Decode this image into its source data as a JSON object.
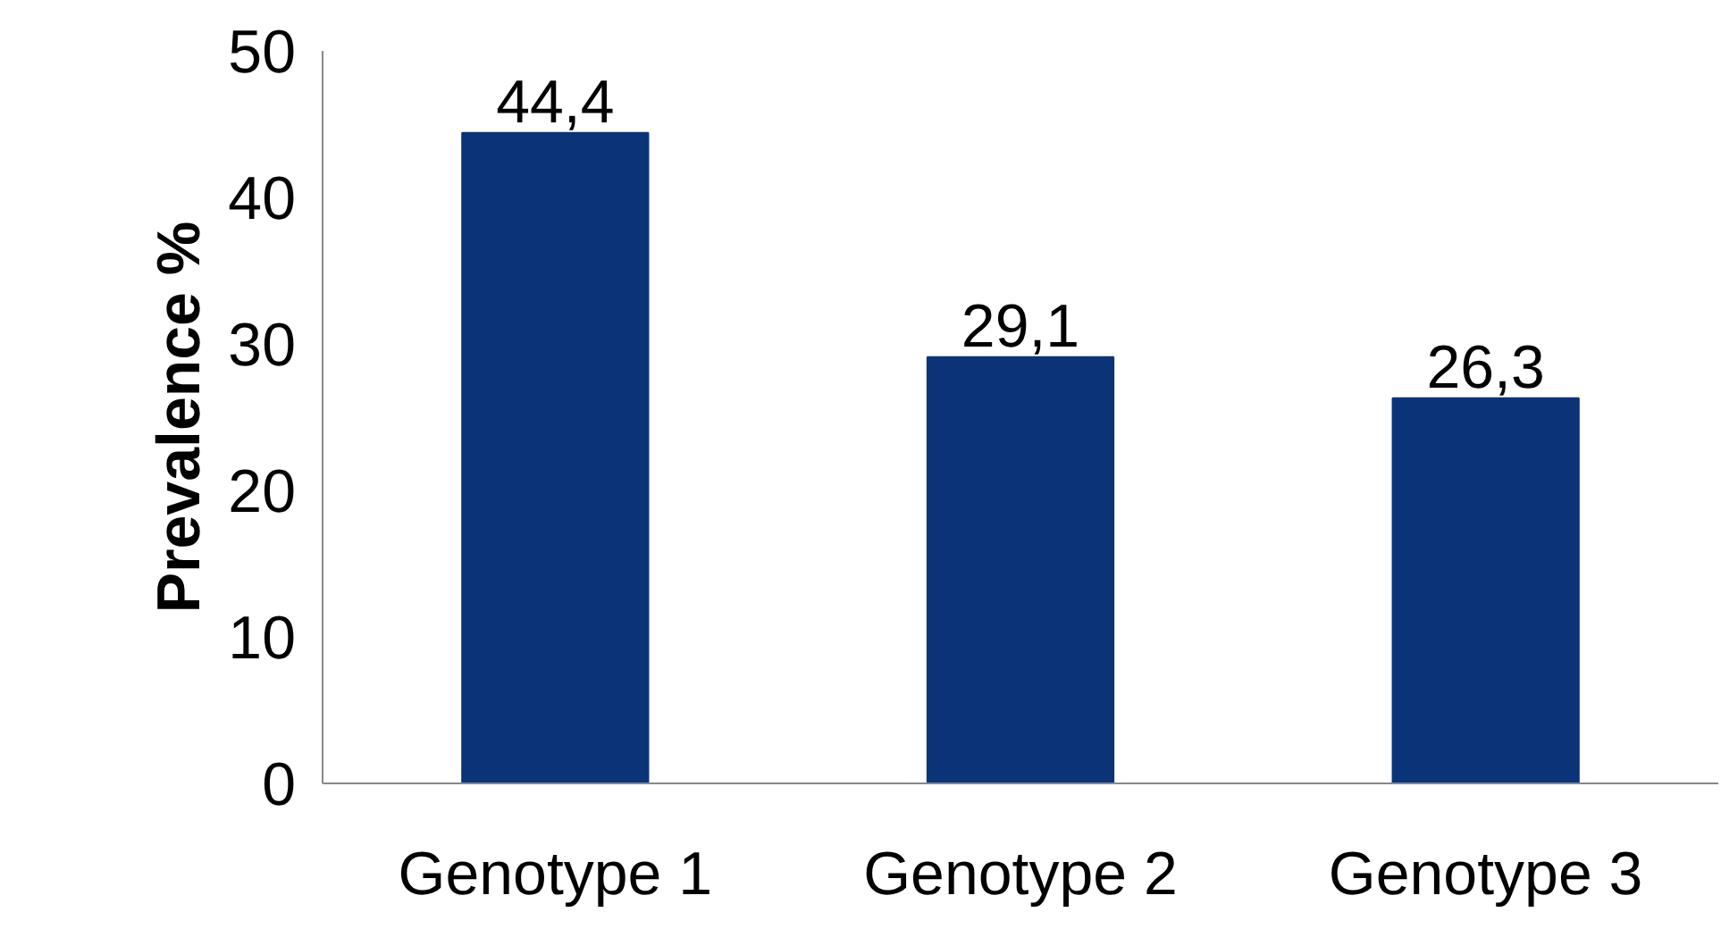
{
  "chart_data": {
    "type": "bar",
    "ylabel": "Prevalence %",
    "categories": [
      "Genotype 1",
      "Genotype 2",
      "Genotype 3"
    ],
    "values": [
      44.4,
      29.1,
      26.3
    ],
    "value_labels": [
      "44,4",
      "29,1",
      "26,3"
    ],
    "color": "#0b3478",
    "ylim": [
      0,
      50
    ],
    "yticks": [
      0,
      10,
      20,
      30,
      40,
      50
    ],
    "grid": false
  }
}
